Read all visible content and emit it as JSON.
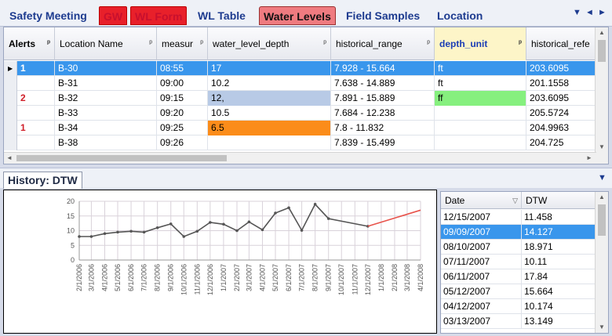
{
  "tabs": [
    {
      "label": "Safety Meeting",
      "style": "normal"
    },
    {
      "label": "GW",
      "style": "red"
    },
    {
      "label": "WL Form",
      "style": "red"
    },
    {
      "label": "WL Table",
      "style": "normal"
    },
    {
      "label": "Water Levels",
      "style": "active"
    },
    {
      "label": "Field Samples",
      "style": "normal"
    },
    {
      "label": "Location",
      "style": "normal"
    }
  ],
  "tab_nav": {
    "dropdown": "▼",
    "prev": "◄",
    "next": "►"
  },
  "grid": {
    "columns": [
      "Alerts",
      "Location Name",
      "measur",
      "water_level_depth",
      "historical_range",
      "depth_unit",
      "historical_refe"
    ],
    "rows": [
      {
        "alerts": "1",
        "location": "B-30",
        "time": "08:55",
        "depth": "17",
        "range": "7.928 - 15.664",
        "unit": "ft",
        "ref": "203.6095",
        "selected": true
      },
      {
        "alerts": "",
        "location": "B-31",
        "time": "09:00",
        "depth": "10.2",
        "range": "7.638 - 14.889",
        "unit": "ft",
        "ref": "201.1558",
        "selected": false
      },
      {
        "alerts": "2",
        "location": "B-32",
        "time": "09:15",
        "depth": "12,",
        "range": "7.891 - 15.889",
        "unit": "ff",
        "ref": "203.6095",
        "selected": false
      },
      {
        "alerts": "",
        "location": "B-33",
        "time": "09:20",
        "depth": "10.5",
        "range": "7.684 - 12.238",
        "unit": "",
        "ref": "205.5724",
        "selected": false
      },
      {
        "alerts": "1",
        "location": "B-34",
        "time": "09:25",
        "depth": "6.5",
        "range": "7.8 - 11.832",
        "unit": "",
        "ref": "204.9963",
        "selected": false
      },
      {
        "alerts": "",
        "location": "B-38",
        "time": "09:26",
        "depth": "",
        "range": "7.839 - 15.499",
        "unit": "",
        "ref": "204.725",
        "selected": false
      }
    ],
    "colors": {
      "selected": "#3996ec",
      "depth_warn": "#b8cae6",
      "unit_warn": "#86f07e",
      "depth_alert": "#fb8c1a"
    }
  },
  "history": {
    "tab_label": "History: DTW",
    "table": {
      "headers": [
        "Date",
        "DTW"
      ],
      "rows": [
        {
          "date": "12/15/2007",
          "dtw": "11.458",
          "selected": false
        },
        {
          "date": "09/09/2007",
          "dtw": "14.127",
          "selected": true
        },
        {
          "date": "08/10/2007",
          "dtw": "18.971",
          "selected": false
        },
        {
          "date": "07/11/2007",
          "dtw": "10.11",
          "selected": false
        },
        {
          "date": "06/11/2007",
          "dtw": "17.84",
          "selected": false
        },
        {
          "date": "05/12/2007",
          "dtw": "15.664",
          "selected": false
        },
        {
          "date": "04/12/2007",
          "dtw": "10.174",
          "selected": false
        },
        {
          "date": "03/13/2007",
          "dtw": "13.149",
          "selected": false
        }
      ]
    }
  },
  "chart_data": {
    "type": "line",
    "title": "",
    "xlabel": "",
    "ylabel": "",
    "ylim": [
      0,
      20
    ],
    "yticks": [
      0,
      5,
      10,
      15,
      20
    ],
    "xticks": [
      "2/1/2006",
      "3/1/2006",
      "4/1/2006",
      "5/1/2006",
      "6/1/2006",
      "7/1/2006",
      "8/1/2006",
      "9/1/2006",
      "10/1/2006",
      "11/1/2006",
      "12/1/2006",
      "1/1/2007",
      "2/1/2007",
      "3/1/2007",
      "4/1/2007",
      "5/1/2007",
      "6/1/2007",
      "7/1/2007",
      "8/1/2007",
      "9/1/2007",
      "10/1/2007",
      "11/1/2007",
      "12/1/2007",
      "1/1/2008",
      "2/1/2008",
      "3/1/2008",
      "4/1/2008"
    ],
    "grid": true,
    "series": [
      {
        "color": "#555555",
        "markers": true,
        "x": [
          "2006-02-01",
          "2006-03-01",
          "2006-04-01",
          "2006-05-01",
          "2006-06-01",
          "2006-07-01",
          "2006-08-01",
          "2006-09-01",
          "2006-10-01",
          "2006-11-01",
          "2006-12-01",
          "2007-01-01",
          "2007-02-01",
          "2007-03-01",
          "2007-04-01",
          "2007-05-01",
          "2007-06-01",
          "2007-07-01",
          "2007-08-01",
          "2007-09-01",
          "2007-12-01"
        ],
        "y": [
          8,
          8,
          9,
          9.5,
          9.8,
          9.5,
          11,
          12.3,
          8,
          9.8,
          12.8,
          12.2,
          10,
          13,
          10.3,
          16,
          17.8,
          10.1,
          19,
          14.1,
          11.5
        ]
      },
      {
        "color": "#e8534b",
        "markers": false,
        "x": [
          "2007-12-01",
          "2008-04-01"
        ],
        "y": [
          11.5,
          17
        ]
      }
    ]
  }
}
